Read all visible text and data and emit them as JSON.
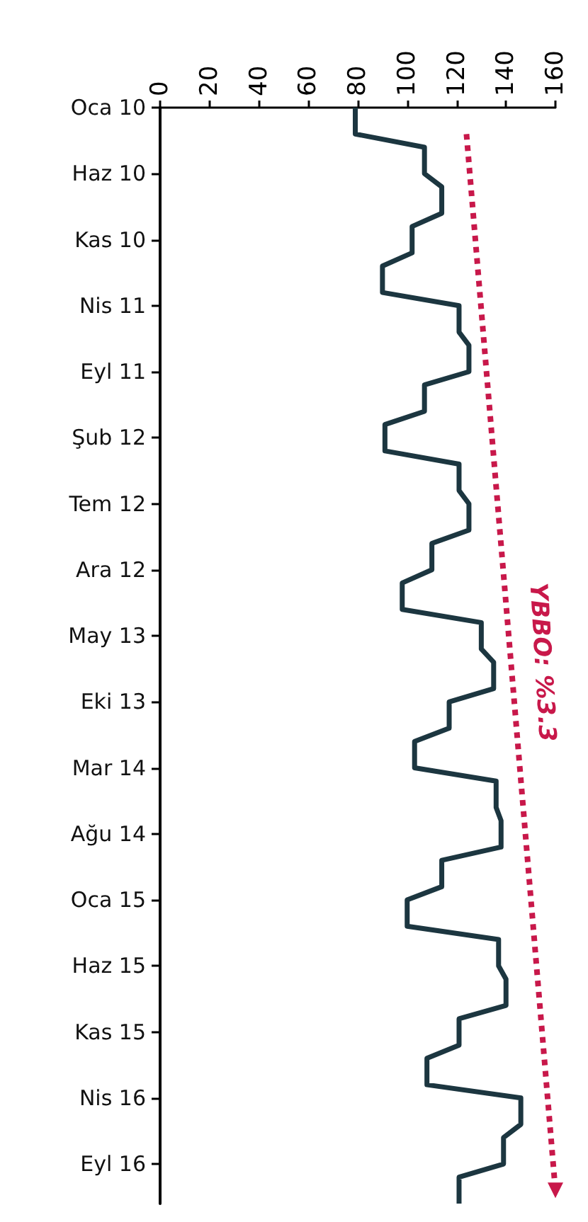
{
  "chart_data": {
    "type": "line",
    "orientation": "horizontal",
    "categories": [
      "Oca 10",
      null,
      null,
      null,
      null,
      "Haz 10",
      null,
      null,
      null,
      null,
      "Kas 10",
      null,
      null,
      null,
      null,
      "Nis 11",
      null,
      null,
      null,
      null,
      "Eyl 11",
      null,
      null,
      null,
      null,
      "Şub 12",
      null,
      null,
      null,
      null,
      "Tem 12",
      null,
      null,
      null,
      null,
      "Ara 12",
      null,
      null,
      null,
      null,
      "May 13",
      null,
      null,
      null,
      null,
      "Eki 13",
      null,
      null,
      null,
      null,
      "Mar 14",
      null,
      null,
      null,
      null,
      "Ağu 14",
      null,
      null,
      null,
      null,
      "Oca 15",
      null,
      null,
      null,
      null,
      "Haz 15",
      null,
      null,
      null,
      null,
      "Kas 15",
      null,
      null,
      null,
      null,
      "Nis 16",
      null,
      null,
      null,
      null,
      "Eyl 16",
      null,
      null,
      null
    ],
    "series": [
      {
        "color": "#1c3640",
        "values": [
          79,
          79,
          79,
          107,
          107,
          107,
          114,
          114,
          114,
          102,
          102,
          102,
          90,
          90,
          90,
          121,
          121,
          121,
          125,
          125,
          125,
          107,
          107,
          107,
          91,
          91,
          91,
          121,
          121,
          121,
          125,
          125,
          125,
          110,
          110,
          110,
          98,
          98,
          98,
          130,
          130,
          130,
          135,
          135,
          135,
          117,
          117,
          117,
          103,
          103,
          103,
          136,
          136,
          136,
          138,
          138,
          138,
          114,
          114,
          114,
          100,
          100,
          100,
          137,
          137,
          137,
          140,
          140,
          140,
          121,
          121,
          121,
          108,
          108,
          108,
          146,
          146,
          146,
          139,
          139,
          139,
          121,
          121,
          121
        ]
      },
      {
        "type": "line",
        "color": "#c8184a",
        "line_style": "dotted",
        "values": [
          null,
          null,
          124,
          null,
          null,
          null,
          null,
          null,
          null,
          null,
          null,
          null,
          null,
          null,
          null,
          null,
          null,
          null,
          null,
          null,
          null,
          null,
          null,
          null,
          null,
          null,
          null,
          null,
          null,
          null,
          null,
          null,
          null,
          null,
          null,
          null,
          null,
          null,
          null,
          null,
          null,
          null,
          null,
          null,
          null,
          null,
          null,
          null,
          null,
          null,
          null,
          null,
          null,
          null,
          null,
          null,
          null,
          null,
          null,
          null,
          null,
          null,
          null,
          null,
          null,
          null,
          null,
          null,
          null,
          null,
          null,
          null,
          null,
          null,
          null,
          null,
          null,
          null,
          null,
          null,
          null,
          null,
          160,
          null
        ]
      }
    ],
    "annotations": [
      "YBBO: %3.3"
    ],
    "xlim": [
      0,
      160
    ],
    "xticks": [
      0,
      20,
      40,
      60,
      80,
      100,
      120,
      140,
      160
    ],
    "grid": false
  }
}
